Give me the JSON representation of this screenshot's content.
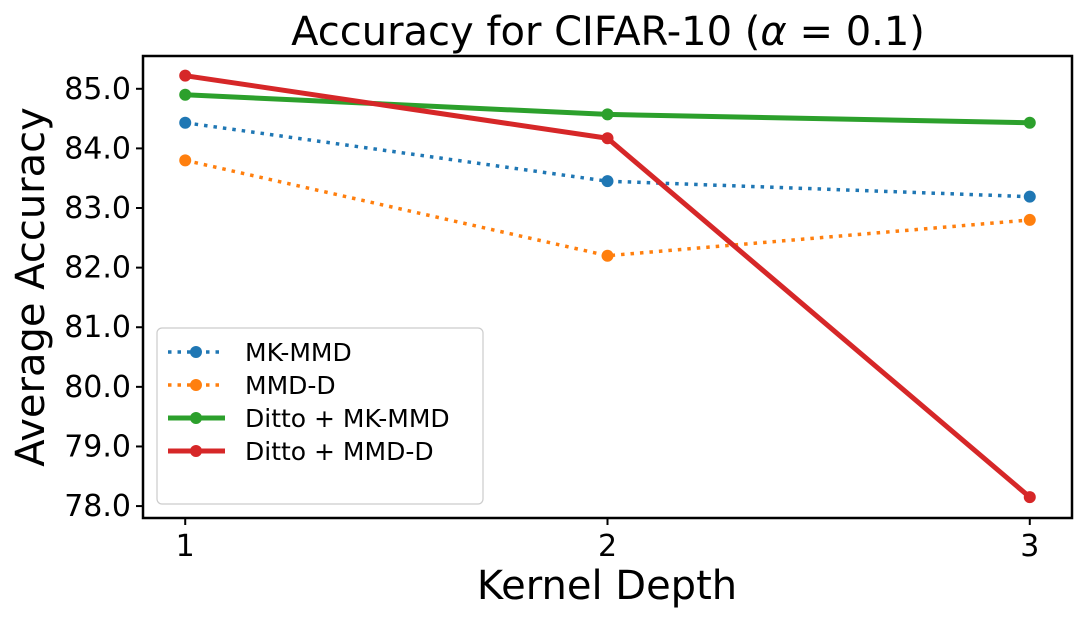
{
  "chart_data": {
    "type": "line",
    "title": "Accuracy for CIFAR-10 (",
    "title_alpha": "α",
    "title_rest": " = 0.1)",
    "xlabel": "Kernel Depth",
    "ylabel": "Average Accuracy",
    "x": [
      1,
      2,
      3
    ],
    "x_tick_labels": [
      "1",
      "2",
      "3"
    ],
    "xlim": [
      0.9,
      3.1
    ],
    "ylim": [
      77.8,
      85.55
    ],
    "y_ticks": [
      78.0,
      79.0,
      80.0,
      81.0,
      82.0,
      83.0,
      84.0,
      85.0
    ],
    "y_tick_labels": [
      "78.0",
      "79.0",
      "80.0",
      "81.0",
      "82.0",
      "83.0",
      "84.0",
      "85.0"
    ],
    "grid": false,
    "legend_position": "lower-left",
    "series": [
      {
        "name": "MK-MMD",
        "values": [
          84.43,
          83.45,
          83.19
        ],
        "color": "#1f77b4",
        "style": "dotted",
        "width": "thin"
      },
      {
        "name": "MMD-D",
        "values": [
          83.8,
          82.2,
          82.8
        ],
        "color": "#ff7f0e",
        "style": "dotted",
        "width": "thin"
      },
      {
        "name": "Ditto + MK-MMD",
        "values": [
          84.9,
          84.57,
          84.43
        ],
        "color": "#2ca02c",
        "style": "solid",
        "width": "thick"
      },
      {
        "name": "Ditto + MMD-D",
        "values": [
          85.22,
          84.17,
          78.15
        ],
        "color": "#d62728",
        "style": "solid",
        "width": "thick"
      }
    ]
  }
}
